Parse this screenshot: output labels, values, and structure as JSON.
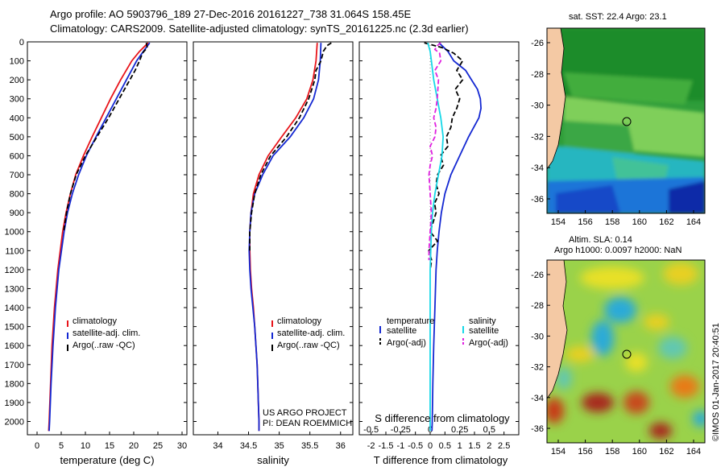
{
  "header": {
    "line1": "Argo profile: AO 5903796_189 27-Dec-2016 20161227_738 31.064S 158.45E",
    "line2": "Climatology: CARS2009. Satellite-adjusted climatology: synTS_20161225.nc (2.3d earlier)"
  },
  "project": {
    "line1": "US ARGO PROJECT",
    "line2": "PI: DEAN ROEMMICH"
  },
  "side_label": "©IMOS 01-Jan-2017 20:40:51",
  "colors": {
    "clim": "#e8141a",
    "sat": "#1428d2",
    "argo": "#000000",
    "tsat": "#16d8e8",
    "argoadj": "#e020e0",
    "land": "#f4c9a4"
  },
  "chart_data": [
    {
      "id": "temperature",
      "type": "line",
      "xlabel": "temperature (deg C)",
      "xlim": [
        -2,
        31
      ],
      "xticks": [
        0,
        5,
        10,
        15,
        20,
        25,
        30
      ],
      "xtick_labels": [
        "0",
        "5",
        "10",
        "15",
        "20",
        "25",
        "30"
      ],
      "ylim": [
        0,
        2070
      ],
      "yticks": [
        0,
        100,
        200,
        300,
        400,
        500,
        600,
        700,
        800,
        900,
        1000,
        1100,
        1200,
        1300,
        1400,
        1500,
        1600,
        1700,
        1800,
        1900,
        2000
      ],
      "ytick_labels": [
        "0",
        "100",
        "200",
        "300",
        "400",
        "500",
        "600",
        "700",
        "800",
        "900",
        "1000",
        "1100",
        "1200",
        "1300",
        "1400",
        "1500",
        "1600",
        "1700",
        "1800",
        "1900",
        "2000"
      ],
      "legend": [
        "climatology",
        "satellite-adj. clim.",
        "Argo(..raw -QC)"
      ],
      "series": [
        {
          "name": "climatology",
          "color_key": "clim",
          "dash": false,
          "depth": [
            5,
            50,
            100,
            200,
            300,
            400,
            500,
            600,
            700,
            800,
            900,
            1000,
            1200,
            1400,
            1600,
            1800,
            2000,
            2050
          ],
          "values": [
            23.0,
            21.2,
            19.6,
            17.3,
            15.2,
            13.3,
            11.4,
            9.6,
            8.0,
            6.9,
            6.0,
            5.3,
            4.3,
            3.6,
            3.1,
            2.8,
            2.5,
            2.4
          ]
        },
        {
          "name": "satellite-adj. clim.",
          "color_key": "sat",
          "dash": false,
          "depth": [
            5,
            50,
            100,
            200,
            300,
            400,
            500,
            600,
            700,
            800,
            900,
            1000,
            1200,
            1400,
            1600,
            1800,
            2000,
            2050
          ],
          "values": [
            23.3,
            22.0,
            20.6,
            18.5,
            16.4,
            14.3,
            12.2,
            10.2,
            8.6,
            7.3,
            6.3,
            5.6,
            4.5,
            3.8,
            3.3,
            2.9,
            2.6,
            2.5
          ]
        },
        {
          "name": "Argo(..raw -QC)",
          "color_key": "argo",
          "dash": true,
          "depth": [
            5,
            30,
            60,
            100,
            150,
            200,
            300,
            400,
            500,
            600,
            700,
            800,
            900,
            1000
          ],
          "values": [
            22.6,
            22.8,
            21.8,
            21.2,
            20.3,
            19.2,
            17.0,
            14.8,
            12.4,
            10.0,
            8.1,
            6.9,
            6.1,
            5.5
          ]
        }
      ]
    },
    {
      "id": "salinity",
      "type": "line",
      "xlabel": "salinity",
      "xlim": [
        33.6,
        36.2
      ],
      "xticks": [
        34,
        34.5,
        35,
        35.5,
        36
      ],
      "xtick_labels": [
        "34",
        "34.5",
        "35",
        "35.5",
        "36"
      ],
      "ylim": [
        0,
        2070
      ],
      "legend": [
        "climatology",
        "satellite-adj. clim.",
        "Argo(..raw -QC)"
      ],
      "series": [
        {
          "name": "climatology",
          "color_key": "clim",
          "dash": false,
          "depth": [
            5,
            100,
            200,
            300,
            400,
            500,
            600,
            700,
            800,
            900,
            1000,
            1100,
            1200,
            1300,
            1400,
            1500,
            1600,
            1700,
            1800,
            1900,
            2000,
            2050
          ],
          "values": [
            35.62,
            35.6,
            35.55,
            35.45,
            35.27,
            35.04,
            34.82,
            34.67,
            34.58,
            34.54,
            34.52,
            34.52,
            34.53,
            34.55,
            34.58,
            34.6,
            34.62,
            34.64,
            34.65,
            34.66,
            34.67,
            34.67
          ]
        },
        {
          "name": "satellite-adj. clim.",
          "color_key": "sat",
          "dash": false,
          "depth": [
            5,
            100,
            200,
            300,
            400,
            500,
            600,
            700,
            800,
            900,
            1000,
            1100,
            1200,
            1300,
            1400,
            1500,
            1600,
            1700,
            1800,
            1900,
            2000,
            2050
          ],
          "values": [
            35.68,
            35.67,
            35.64,
            35.56,
            35.4,
            35.18,
            34.9,
            34.73,
            34.6,
            34.54,
            34.52,
            34.51,
            34.52,
            34.54,
            34.57,
            34.6,
            34.62,
            34.64,
            34.65,
            34.66,
            34.67,
            34.67
          ]
        },
        {
          "name": "Argo(..raw -QC)",
          "color_key": "argo",
          "dash": true,
          "depth": [
            5,
            20,
            50,
            100,
            150,
            200,
            300,
            400,
            500,
            600,
            700,
            800,
            900,
            1000,
            1100
          ],
          "values": [
            35.85,
            35.78,
            35.72,
            35.68,
            35.6,
            35.58,
            35.48,
            35.33,
            35.12,
            34.86,
            34.7,
            34.6,
            34.55,
            34.52,
            34.52
          ]
        }
      ]
    },
    {
      "id": "difference",
      "type": "line",
      "xlabel": "T difference from climatology",
      "top_label": "S difference from climatology",
      "xlim": [
        -2.4,
        3.0
      ],
      "xticks": [
        -2,
        -1.5,
        -1,
        -0.5,
        0,
        0.5,
        1,
        1.5,
        2,
        2.5
      ],
      "xtick_labels": [
        "-2",
        "-1.5",
        "-1",
        "-0.5",
        "0",
        "0.5",
        "1",
        "1.5",
        "2",
        "2.5"
      ],
      "xtop_ticks": [
        -0.5,
        -0.25,
        0,
        0.25,
        0.5
      ],
      "xtop_labels": [
        "-0.5",
        "-0.25",
        "0",
        "0.25",
        "0.5"
      ],
      "ylim": [
        0,
        2070
      ],
      "legend_left_title": "temperature",
      "legend_right_title": "salinity",
      "legend_left": [
        "satellite",
        "Argo(-adj)"
      ],
      "legend_right": [
        "satellite",
        "Argo(-adj)"
      ],
      "series": [
        {
          "name": "T satellite",
          "color_key": "sat",
          "dash": false,
          "depth": [
            5,
            50,
            100,
            150,
            200,
            250,
            300,
            350,
            400,
            500,
            600,
            700,
            800,
            900,
            1000,
            1100,
            1200,
            1400,
            1600,
            1800,
            2000,
            2050
          ],
          "values": [
            0.3,
            0.6,
            0.8,
            1.2,
            1.4,
            1.6,
            1.7,
            1.72,
            1.65,
            1.3,
            1.0,
            0.7,
            0.5,
            0.38,
            0.3,
            0.24,
            0.2,
            0.16,
            0.12,
            0.09,
            0.07,
            0.06
          ]
        },
        {
          "name": "T Argo(-adj)",
          "color_key": "argo",
          "dash": true,
          "depth": [
            5,
            30,
            60,
            100,
            150,
            200,
            250,
            300,
            350,
            400,
            450,
            500,
            550,
            600,
            650,
            700,
            750,
            800,
            850,
            900,
            950,
            1000,
            1050,
            1100,
            1150,
            1200
          ],
          "values": [
            -0.2,
            0.4,
            0.8,
            1.1,
            0.9,
            1.1,
            0.85,
            1.0,
            0.9,
            0.75,
            0.7,
            0.55,
            0.6,
            0.35,
            0.45,
            0.25,
            0.2,
            0.3,
            0.15,
            0.2,
            0.1,
            0.0,
            0.25,
            -0.05,
            0.05,
            0.0
          ]
        },
        {
          "name": "S satellite",
          "color_key": "tsat",
          "dash": false,
          "depth": [
            5,
            50,
            100,
            200,
            300,
            400,
            500,
            600,
            700,
            800,
            900,
            1000,
            1200,
            1400,
            1600,
            1800,
            2000,
            2050
          ],
          "values": [
            -0.02,
            0.0,
            0.01,
            0.03,
            0.06,
            0.09,
            0.11,
            0.1,
            0.07,
            0.04,
            0.02,
            0.01,
            0.0,
            0.0,
            0.0,
            0.0,
            0.0,
            0.0
          ]
        },
        {
          "name": "S Argo(-adj)",
          "color_key": "argoadj",
          "dash": true,
          "depth": [
            5,
            20,
            40,
            60,
            100,
            150,
            200,
            300,
            350,
            400,
            450,
            500,
            550,
            600,
            650,
            700,
            800,
            900,
            1000,
            1100,
            1150
          ],
          "values": [
            0.09,
            0.06,
            0.04,
            0.08,
            0.09,
            0.04,
            0.07,
            0.06,
            0.05,
            0.03,
            0.05,
            0.04,
            0.0,
            0.02,
            0.0,
            -0.01,
            0.0,
            0.01,
            0.0,
            -0.01,
            -0.01
          ]
        }
      ]
    }
  ],
  "maps": {
    "sst": {
      "title": "sat. SST: 22.4  Argo: 23.1",
      "lon_ticks": [
        "154",
        "156",
        "158",
        "160",
        "162",
        "164"
      ],
      "lat_ticks": [
        "-26",
        "-28",
        "-30",
        "-32",
        "-34",
        "-36"
      ]
    },
    "sla": {
      "title1": "Altim. SLA: 0.14",
      "title2": "Argo h1000: 0.0097 h2000: NaN",
      "lon_ticks": [
        "154",
        "156",
        "158",
        "160",
        "162",
        "164"
      ],
      "lat_ticks": [
        "-26",
        "-28",
        "-30",
        "-32",
        "-34",
        "-36"
      ]
    }
  }
}
